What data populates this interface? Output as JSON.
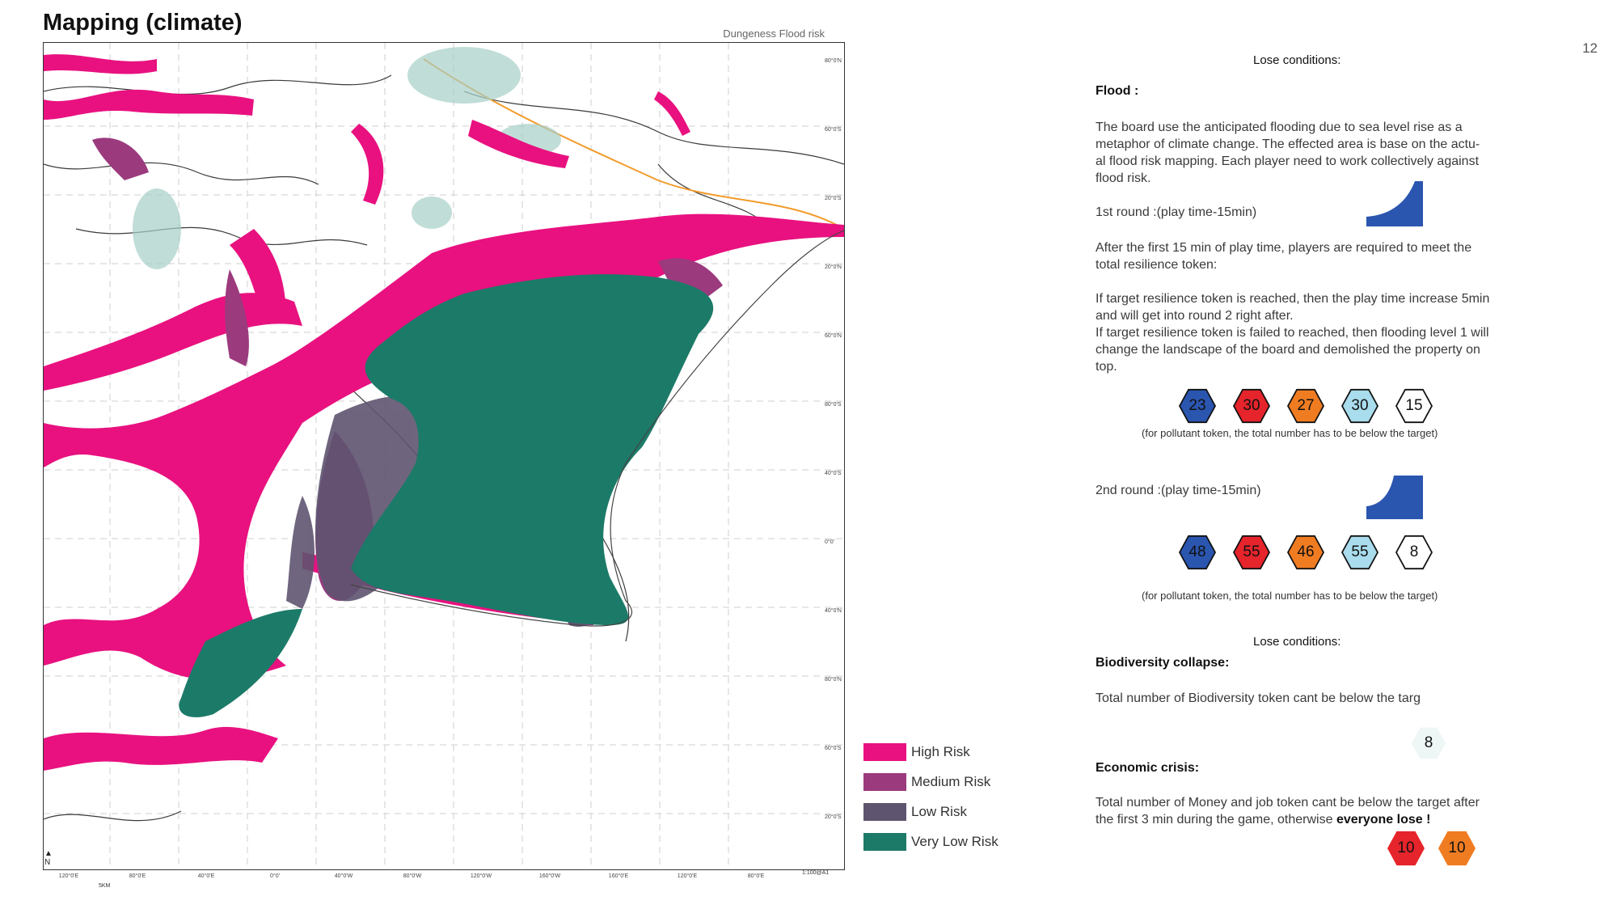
{
  "page": {
    "title": "Mapping (climate)",
    "number": "12"
  },
  "map": {
    "caption": "Dungeness Flood risk",
    "x_ticks": [
      "120°0'E",
      "80°0'E",
      "40°0'E",
      "0°0'",
      "40°0'W",
      "80°0'W",
      "120°0'W",
      "160°0'W",
      "160°0'E",
      "120°0'E",
      "80°0'E"
    ],
    "y_ticks": [
      "80°0'N",
      "60°0'S",
      "20°0'S",
      "20°0'N",
      "60°0'N",
      "80°0'S",
      "40°0'S",
      "0°0'",
      "40°0'N",
      "80°0'N",
      "60°0'S",
      "20°0'S"
    ],
    "scale_text": "5KM",
    "scale_ratio": "1:100@A1",
    "north": "N"
  },
  "legend": [
    {
      "label": "High Risk",
      "color": "#e8117f"
    },
    {
      "label": "Medium Risk",
      "color": "#9c3a7e"
    },
    {
      "label": "Low Risk",
      "color": "#5f5470"
    },
    {
      "label": "Very Low Risk",
      "color": "#1c7a68"
    }
  ],
  "rules": {
    "lose_title_1": "Lose conditions:",
    "flood_heading": "Flood :",
    "flood_desc": [
      "The board use the anticipated flooding due to sea level rise as a",
      "metaphor of climate change. The effected area is base on the actu-",
      "al flood risk mapping. Each player need to work collectively against",
      "flood risk."
    ],
    "round1_label": "1st round :(play time-15min)",
    "round1_desc": [
      "After the first 15 min of play time, players are required to meet the",
      "total resilience token:"
    ],
    "round1_rules": [
      "If target resilience token is reached, then the play time increase 5min",
      "and will get into round 2 right after.",
      "If target resilience token is failed to reached, then flooding level 1 will",
      "change the landscape of the board and demolished the property on",
      "top."
    ],
    "round1_tokens": [
      {
        "value": "23",
        "color": "#2a56b0"
      },
      {
        "value": "30",
        "color": "#e5242b"
      },
      {
        "value": "27",
        "color": "#f07c22"
      },
      {
        "value": "30",
        "color": "#a9dcec"
      },
      {
        "value": "15",
        "color": "#ffffff"
      }
    ],
    "pollutant_note_1": "(for pollutant token, the total number has to be below the target)",
    "round2_label": "2nd round :(play time-15min)",
    "round2_tokens": [
      {
        "value": "48",
        "color": "#2a56b0"
      },
      {
        "value": "55",
        "color": "#e5242b"
      },
      {
        "value": "46",
        "color": "#f07c22"
      },
      {
        "value": "55",
        "color": "#a9dcec"
      },
      {
        "value": "8",
        "color": "#ffffff"
      }
    ],
    "pollutant_note_2": "(for pollutant token, the total number has to be below the target)",
    "lose_title_2": "Lose conditions:",
    "bio_heading": "Biodiversity collapse:",
    "bio_desc": "Total number of Biodiversity token cant be below the targ",
    "bio_token": {
      "value": "8",
      "color": "#eef6f6"
    },
    "econ_heading": "Economic crisis:",
    "econ_desc_line1": "Total number of Money and job token cant be below the target after",
    "econ_desc_line2": "the first 3 min during the game, otherwise",
    "econ_desc_bold": "everyone lose !",
    "econ_tokens": [
      {
        "value": "10",
        "color": "#e5242b"
      },
      {
        "value": "10",
        "color": "#f07c22"
      }
    ]
  }
}
